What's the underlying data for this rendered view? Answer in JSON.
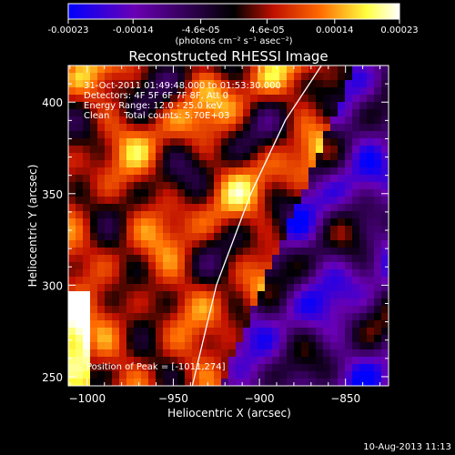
{
  "chart_data": {
    "type": "heatmap",
    "title": "Reconstructed RHESSI Image",
    "xlabel": "Heliocentric X (arcsec)",
    "ylabel": "Heliocentric Y (arcsec)",
    "xlim": [
      -1011,
      -825
    ],
    "ylim": [
      245,
      420
    ],
    "x_ticks": [
      -1000,
      -950,
      -900,
      -850
    ],
    "x_tick_labels": [
      "−1000",
      "−950",
      "−900",
      "−850"
    ],
    "y_ticks": [
      250,
      300,
      350,
      400
    ],
    "y_tick_labels": [
      "250",
      "300",
      "350",
      "400"
    ],
    "colorbar": {
      "min": -0.00023,
      "max": 0.00023,
      "ticks": [
        -0.00023,
        -0.00014,
        -4.6e-05,
        4.6e-05,
        0.00014,
        0.00023
      ],
      "tick_labels": [
        "-0.00023",
        "-0.00014",
        "-4.6e-05",
        "4.6e-05",
        "0.00014",
        "0.00023"
      ],
      "units": "(photons cm⁻² s⁻¹ asec⁻²)",
      "colormap": [
        "#0000ff",
        "#6a00b4",
        "#000000",
        "#c01000",
        "#ff6a00",
        "#ffff40",
        "#ffffff"
      ]
    },
    "annotations": [
      "31-Oct-2011 01:49:48.000 to 01:53:30.000",
      "Detectors: 4F 5F 6F 7F 8F, Att 0",
      "Energy Range: 12.0 - 25.0 keV",
      "Clean     Total counts: 5.70E+03"
    ],
    "peak_label": "Position of Peak = [-1011,274]",
    "peak_position": [
      -1011,
      274
    ],
    "limb_curve": [
      [
        -939,
        245
      ],
      [
        -925,
        300
      ],
      [
        -905,
        350
      ],
      [
        -885,
        390
      ],
      [
        -864,
        420
      ]
    ]
  },
  "footer": {
    "timestamp": "10-Aug-2013 11:13"
  }
}
